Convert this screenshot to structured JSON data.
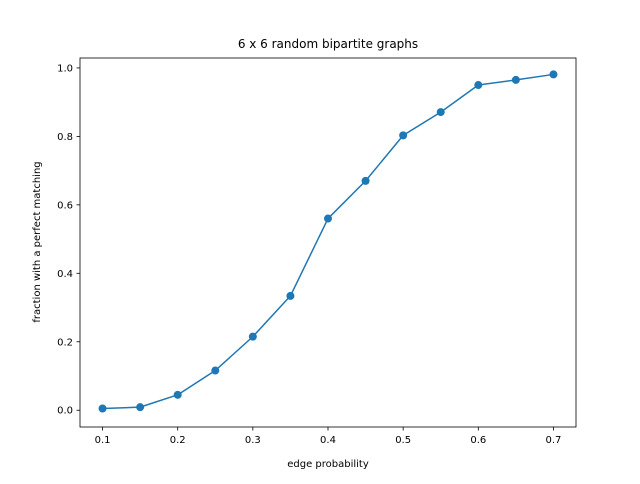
{
  "chart_data": {
    "type": "line",
    "title": "6 x 6 random bipartite graphs",
    "xlabel": "edge probability",
    "ylabel": "fraction with a perfect matching",
    "xlim": [
      0.07,
      0.73
    ],
    "ylim": [
      -0.049,
      1.029
    ],
    "xticks": [
      0.1,
      0.2,
      0.3,
      0.4,
      0.5,
      0.6,
      0.7
    ],
    "yticks": [
      0.0,
      0.2,
      0.4,
      0.6,
      0.8,
      1.0
    ],
    "xtick_labels": [
      "0.1",
      "0.2",
      "0.3",
      "0.4",
      "0.5",
      "0.6",
      "0.7"
    ],
    "ytick_labels": [
      "0.0",
      "0.2",
      "0.4",
      "0.6",
      "0.8",
      "1.0"
    ],
    "grid": false,
    "series": [
      {
        "color": "#1f77b4",
        "marker": "circle",
        "x": [
          0.1,
          0.15,
          0.2,
          0.25,
          0.3,
          0.35,
          0.4,
          0.45,
          0.5,
          0.55,
          0.6,
          0.65,
          0.7
        ],
        "y": [
          0.005,
          0.009,
          0.045,
          0.116,
          0.215,
          0.334,
          0.56,
          0.67,
          0.803,
          0.871,
          0.95,
          0.965,
          0.981
        ]
      }
    ]
  }
}
